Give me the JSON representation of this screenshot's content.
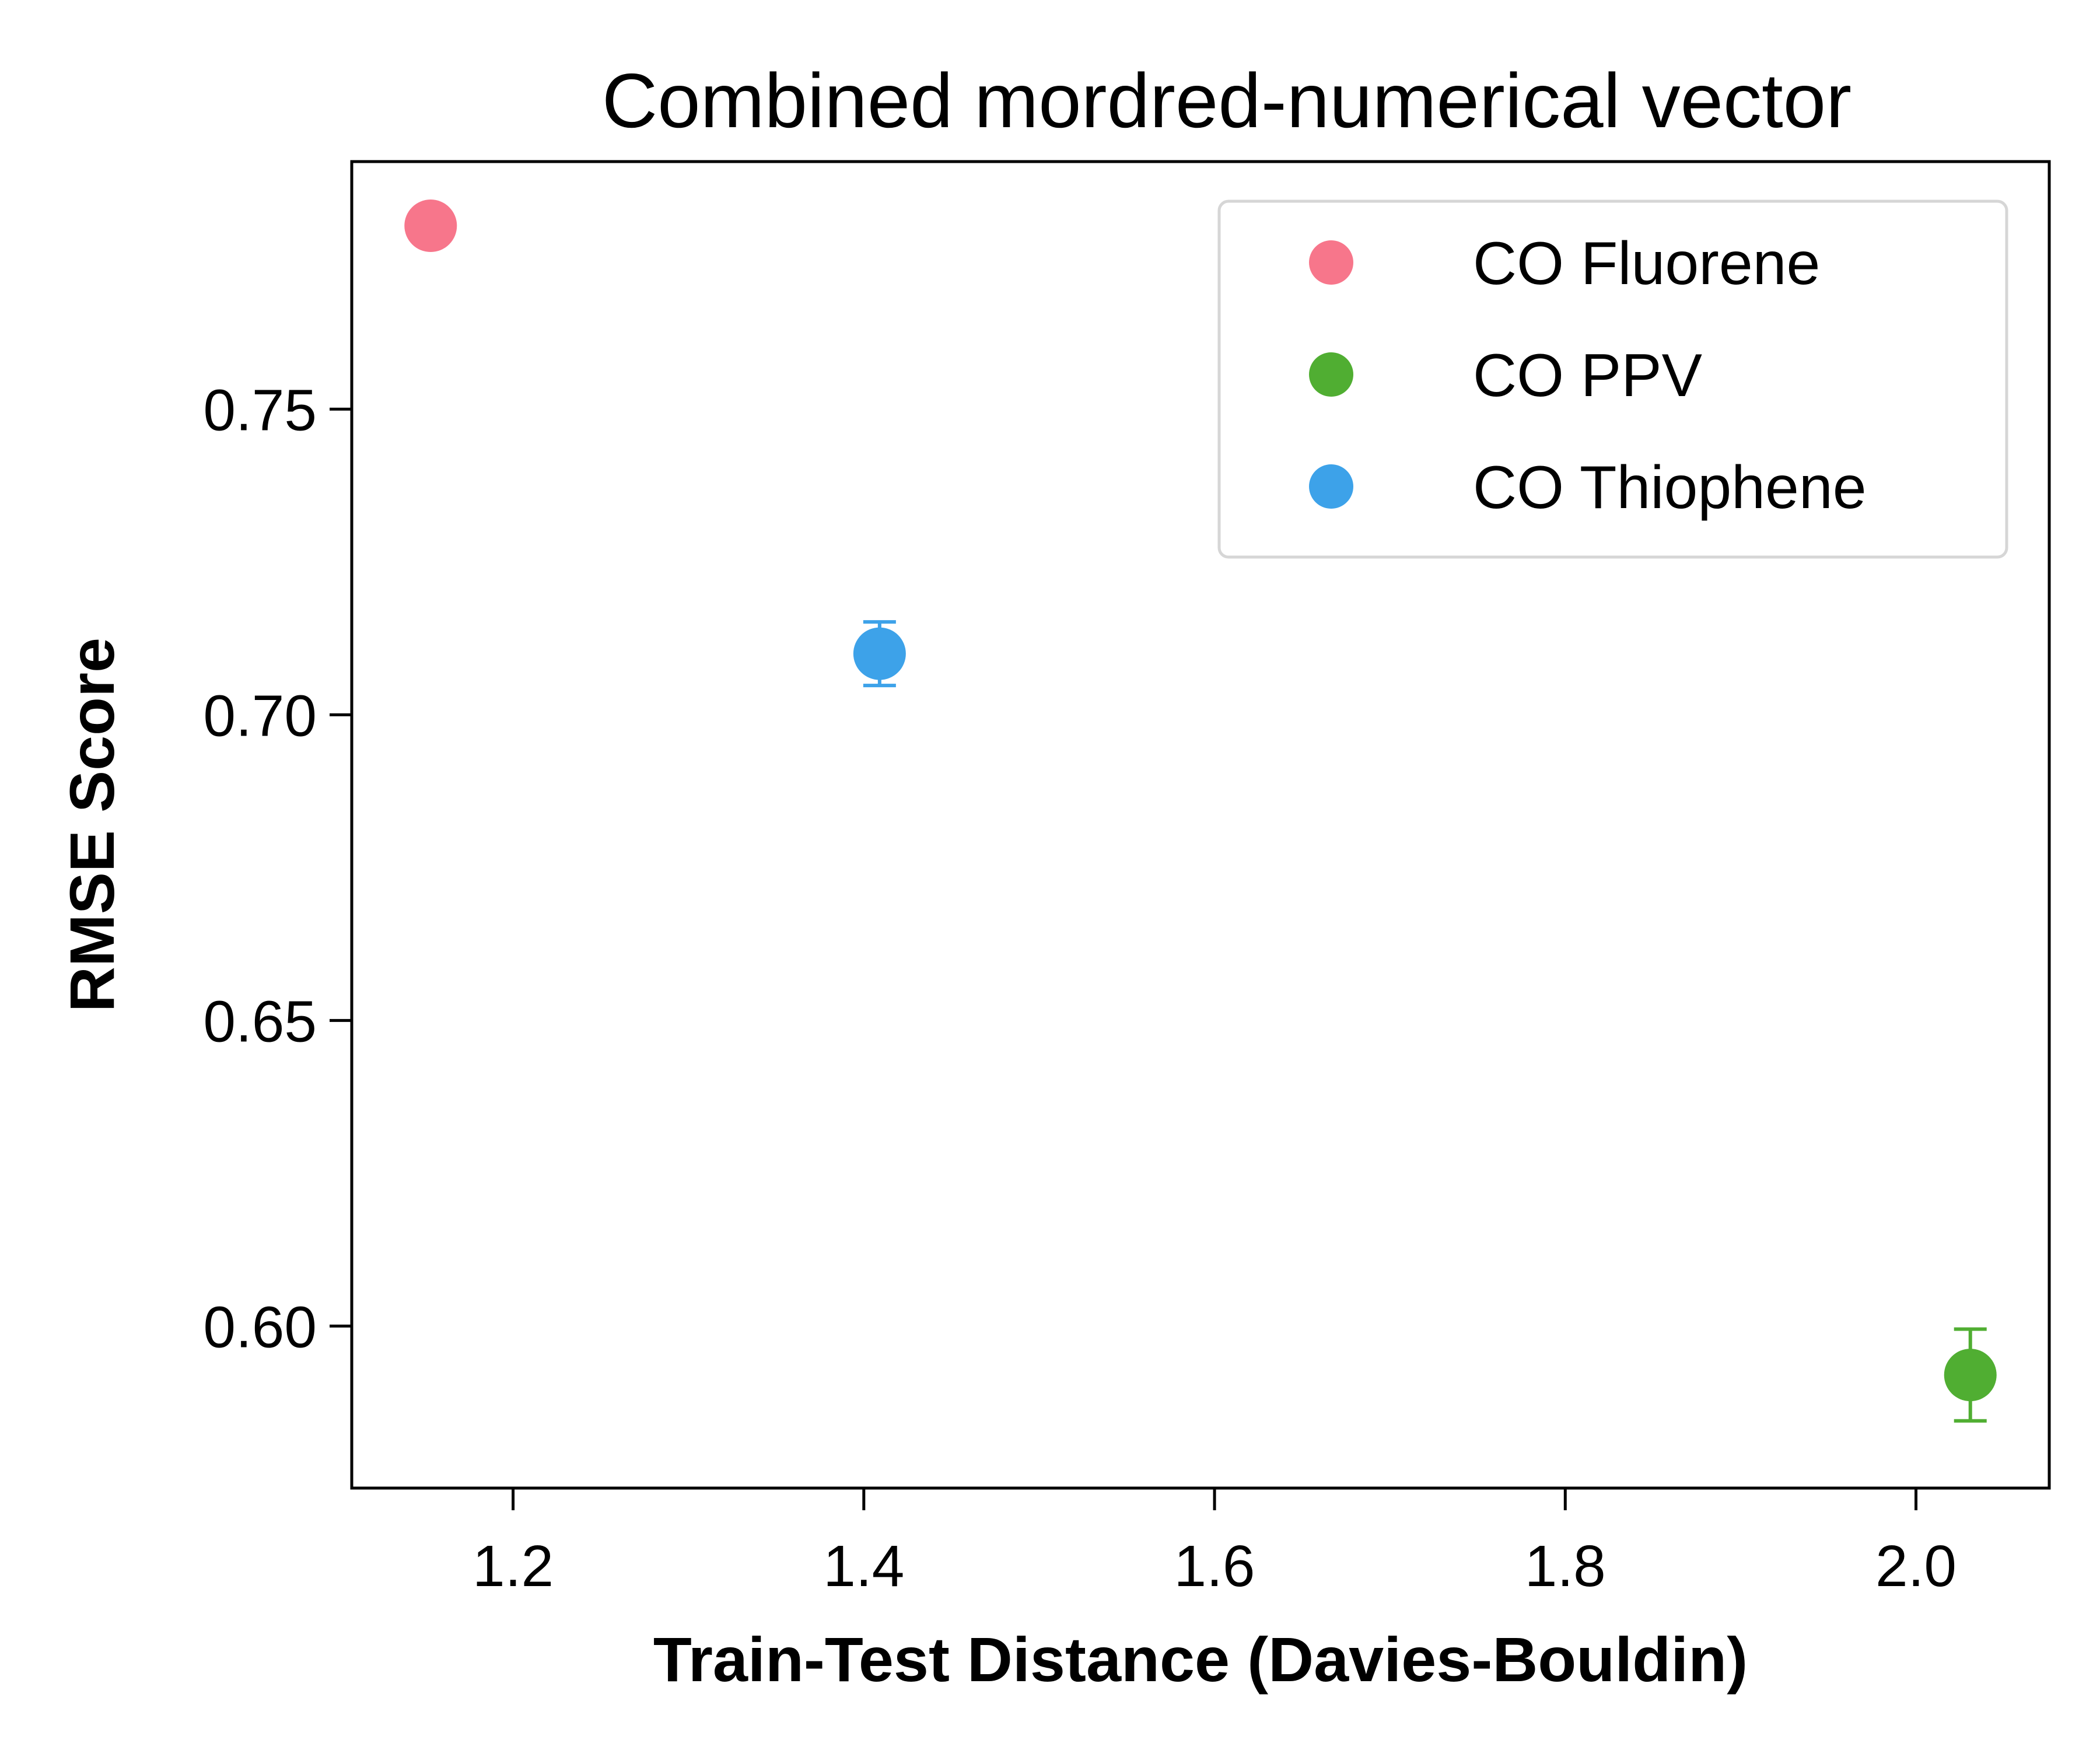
{
  "chart_data": {
    "type": "scatter",
    "title": "Combined mordred-numerical vector",
    "xlabel": "Train-Test Distance (Davies-Bouldin)",
    "ylabel": "RMSE Score",
    "xlim": [
      1.108,
      2.076
    ],
    "ylim": [
      0.5735,
      0.7905
    ],
    "xticks": [
      1.2,
      1.4,
      1.6,
      1.8,
      2.0
    ],
    "xtick_labels": [
      "1.2",
      "1.4",
      "1.6",
      "1.8",
      "2.0"
    ],
    "yticks": [
      0.6,
      0.65,
      0.7,
      0.75
    ],
    "ytick_labels": [
      "0.60",
      "0.65",
      "0.70",
      "0.75"
    ],
    "grid": false,
    "legend_position": "top-right",
    "series": [
      {
        "name": "CO Fluorene",
        "color": "#f7768b",
        "points": [
          {
            "x": 1.153,
            "y": 0.78,
            "err": 0.0
          }
        ]
      },
      {
        "name": "CO PPV",
        "color": "#50ae32",
        "points": [
          {
            "x": 2.031,
            "y": 0.592,
            "err": 0.0075
          }
        ]
      },
      {
        "name": "CO Thiophene",
        "color": "#3da2e9",
        "points": [
          {
            "x": 1.409,
            "y": 0.71,
            "err": 0.0052
          }
        ]
      }
    ]
  }
}
